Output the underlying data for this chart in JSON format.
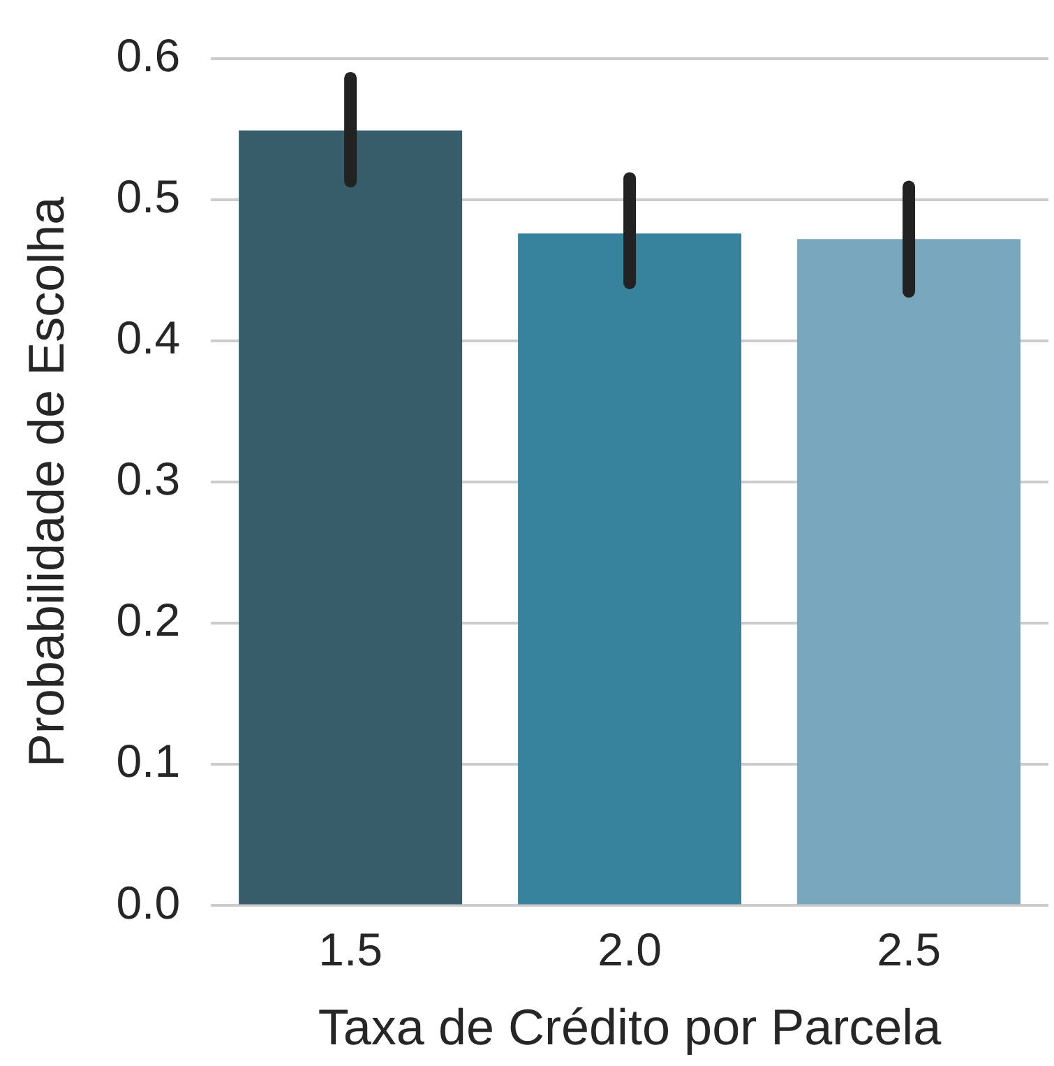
{
  "chart_data": {
    "type": "bar",
    "xlabel": "Taxa de Crédito por Parcela",
    "ylabel": "Probabilidade de Escolha",
    "categories": [
      "1.5",
      "2.0",
      "2.5"
    ],
    "values": [
      0.549,
      0.476,
      0.472
    ],
    "colors": [
      "#375c6a",
      "#37839e",
      "#78a6bd"
    ],
    "errors": [
      [
        0.513,
        0.586
      ],
      [
        0.441,
        0.515
      ],
      [
        0.435,
        0.509
      ]
    ],
    "ylim": [
      0,
      0.6
    ],
    "yticks": [
      {
        "value": 0,
        "label": "0.0"
      },
      0.1,
      0.2,
      0.3,
      0.4,
      0.5,
      0.6
    ],
    "grid": "y"
  }
}
